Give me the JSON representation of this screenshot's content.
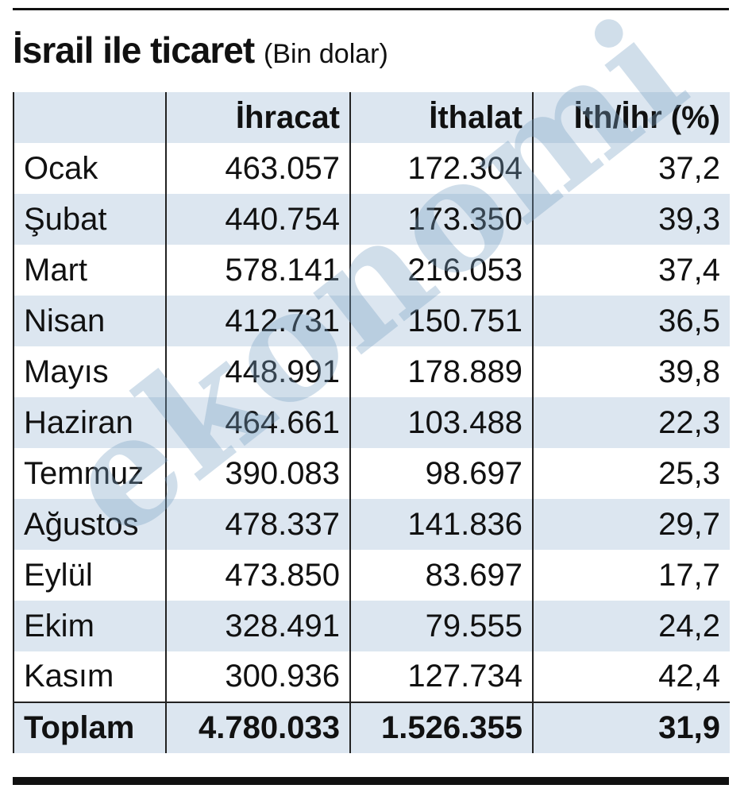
{
  "header": {
    "title": "İsrail ile ticaret",
    "subtitle": "(Bin dolar)"
  },
  "table": {
    "columns": [
      "İhracat",
      "İthalat",
      "İth/İhr (%)"
    ],
    "rows": [
      [
        "Ocak",
        "463.057",
        "172.304",
        "37,2"
      ],
      [
        "Şubat",
        "440.754",
        "173.350",
        "39,3"
      ],
      [
        "Mart",
        "578.141",
        "216.053",
        "37,4"
      ],
      [
        "Nisan",
        "412.731",
        "150.751",
        "36,5"
      ],
      [
        "Mayıs",
        "448.991",
        "178.889",
        "39,8"
      ],
      [
        "Haziran",
        "464.661",
        "103.488",
        "22,3"
      ],
      [
        "Temmuz",
        "390.083",
        "98.697",
        "25,3"
      ],
      [
        "Ağustos",
        "478.337",
        "141.836",
        "29,7"
      ],
      [
        "Eylül",
        "473.850",
        "83.697",
        "17,7"
      ],
      [
        "Ekim",
        "328.491",
        "79.555",
        "24,2"
      ],
      [
        "Kasım",
        "300.936",
        "127.734",
        "42,4"
      ]
    ],
    "total": [
      "Toplam",
      "4.780.033",
      "1.526.355",
      "31,9"
    ]
  },
  "watermark": "ekonomi"
}
